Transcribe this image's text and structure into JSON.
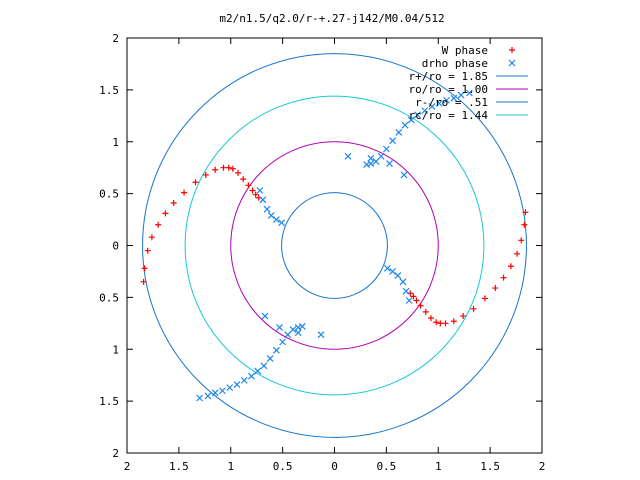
{
  "chart_data": {
    "type": "scatter",
    "title": "m2/n1.5/q2.0/r-+.27-j142/M0.04/512",
    "xlim": [
      -2,
      2
    ],
    "ylim": [
      -2,
      2
    ],
    "x_ticks": [
      {
        "value": -2,
        "label": "2"
      },
      {
        "value": -1.5,
        "label": "1.5"
      },
      {
        "value": -1,
        "label": "1"
      },
      {
        "value": -0.5,
        "label": "0.5"
      },
      {
        "value": 0,
        "label": "0"
      },
      {
        "value": 0.5,
        "label": "0.5"
      },
      {
        "value": 1,
        "label": "1"
      },
      {
        "value": 1.5,
        "label": "1.5"
      },
      {
        "value": 2,
        "label": "2"
      }
    ],
    "y_ticks": [
      {
        "value": 2,
        "label": "2"
      },
      {
        "value": 1.5,
        "label": "1.5"
      },
      {
        "value": 1,
        "label": "1"
      },
      {
        "value": 0.5,
        "label": "0.5"
      },
      {
        "value": 0,
        "label": "0"
      },
      {
        "value": -0.5,
        "label": "0.5"
      },
      {
        "value": -1,
        "label": "1"
      },
      {
        "value": -1.5,
        "label": "1.5"
      },
      {
        "value": -2,
        "label": "2"
      }
    ],
    "grid": false,
    "legend_position": "top-right",
    "circles": [
      {
        "name": "r+/ro = 1.85",
        "radius": 1.85,
        "color": "#1874cd"
      },
      {
        "name": "ro/ro = 1.00",
        "radius": 1.0,
        "color": "#b000b0"
      },
      {
        "name": "r-/ro = .51",
        "radius": 0.51,
        "color": "#1874cd"
      },
      {
        "name": "rc/ro = 1.44",
        "radius": 1.44,
        "color": "#18c8d4"
      }
    ],
    "series": [
      {
        "name": "W phase",
        "marker": "plus",
        "color": "#ff0000",
        "x": [
          -1.84,
          -1.83,
          -1.8,
          -1.76,
          -1.7,
          -1.63,
          -1.55,
          -1.45,
          -1.34,
          -1.24,
          -1.15,
          -1.07,
          -1.02,
          -0.98,
          -0.93,
          -0.88,
          -0.83,
          -0.79,
          -0.76,
          -0.73,
          1.84,
          1.83,
          1.8,
          1.76,
          1.7,
          1.63,
          1.55,
          1.45,
          1.34,
          1.24,
          1.15,
          1.07,
          1.02,
          0.98,
          0.93,
          0.88,
          0.83,
          0.79,
          0.76,
          0.73
        ],
        "y": [
          -0.35,
          -0.22,
          -0.05,
          0.08,
          0.2,
          0.31,
          0.41,
          0.51,
          0.61,
          0.68,
          0.73,
          0.75,
          0.75,
          0.74,
          0.7,
          0.64,
          0.58,
          0.53,
          0.49,
          0.46,
          0.32,
          0.2,
          0.05,
          -0.08,
          -0.2,
          -0.31,
          -0.41,
          -0.51,
          -0.61,
          -0.68,
          -0.73,
          -0.75,
          -0.75,
          -0.74,
          -0.7,
          -0.64,
          -0.58,
          -0.53,
          -0.49,
          -0.46
        ]
      },
      {
        "name": "drho phase",
        "marker": "cross",
        "color": "#1c86ee",
        "x": [
          -0.72,
          -0.69,
          -0.65,
          -0.61,
          -0.56,
          -0.51,
          0.31,
          0.35,
          0.4,
          0.45,
          0.5,
          0.56,
          0.62,
          0.68,
          0.74,
          0.8,
          0.87,
          0.94,
          1.01,
          1.08,
          1.15,
          1.22,
          1.3,
          0.51,
          0.56,
          0.61,
          0.66,
          0.69,
          0.72,
          -0.31,
          -0.35,
          -0.4,
          -0.45,
          -0.5,
          -0.56,
          -0.62,
          -0.68,
          -0.74,
          -0.8,
          -0.87,
          -0.94,
          -1.01,
          -1.08,
          -1.15,
          -1.22,
          -1.3,
          -0.67,
          -0.53,
          -0.35,
          -0.13,
          0.13,
          0.35,
          0.53,
          0.67
        ],
        "y": [
          0.53,
          0.44,
          0.35,
          0.29,
          0.25,
          0.22,
          0.78,
          0.79,
          0.81,
          0.86,
          0.93,
          1.01,
          1.09,
          1.16,
          1.21,
          1.26,
          1.3,
          1.34,
          1.37,
          1.4,
          1.42,
          1.45,
          1.47,
          -0.22,
          -0.25,
          -0.29,
          -0.35,
          -0.44,
          -0.53,
          -0.78,
          -0.79,
          -0.81,
          -0.86,
          -0.93,
          -1.01,
          -1.09,
          -1.16,
          -1.21,
          -1.26,
          -1.3,
          -1.34,
          -1.37,
          -1.4,
          -1.42,
          -1.45,
          -1.47,
          -0.68,
          -0.79,
          -0.84,
          -0.86,
          0.86,
          0.84,
          0.79,
          0.68
        ]
      }
    ]
  }
}
